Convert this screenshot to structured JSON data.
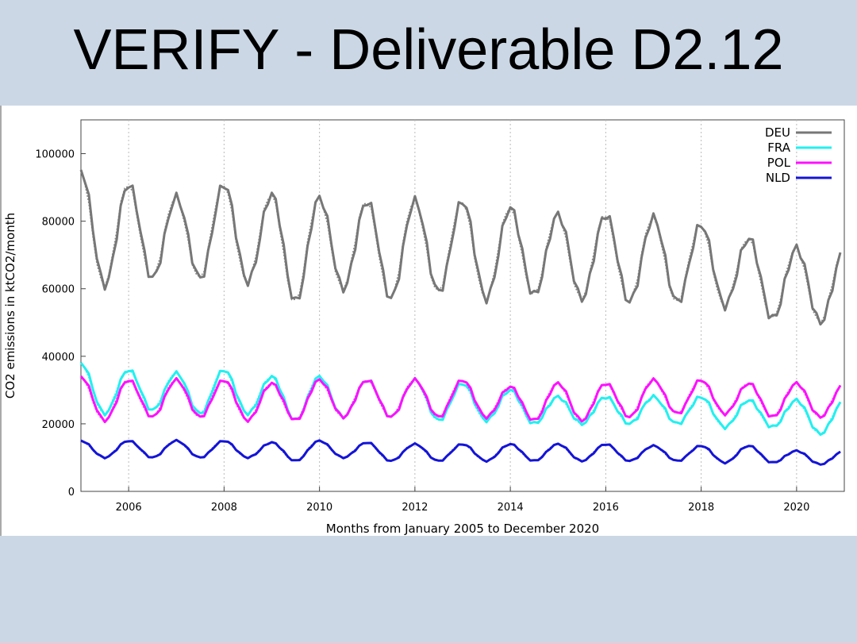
{
  "slide": {
    "title": "VERIFY - Deliverable D2.12"
  },
  "colors": {
    "background": "#cbd7e5",
    "DEU": "#777777",
    "FRA": "#22f0f0",
    "POL": "#ff10ff",
    "NLD": "#1414d8"
  },
  "chart_data": {
    "type": "line",
    "xlabel": "Months from January 2005 to December 2020",
    "ylabel": "CO2 emissions in ktCO2/month",
    "xlim": [
      2005,
      2021
    ],
    "ylim": [
      0,
      110000
    ],
    "xticks": [
      "2006",
      "2008",
      "2010",
      "2012",
      "2014",
      "2016",
      "2018",
      "2020"
    ],
    "yticks": [
      "0",
      "20000",
      "40000",
      "60000",
      "80000",
      "100000"
    ],
    "grid": "vertical dotted",
    "legend_position": "top-right",
    "series": [
      {
        "name": "DEU",
        "color": "#777777",
        "line_width": 3,
        "winter_peak": [
          95000,
          91000,
          87000,
          91000,
          88000,
          87000,
          86000,
          86000,
          86000,
          84000,
          82000,
          82000,
          81000,
          79000,
          75000,
          72000
        ],
        "summer_trough": [
          61000,
          63000,
          63000,
          62000,
          56000,
          60000,
          57000,
          59000,
          57000,
          58000,
          57000,
          56000,
          56000,
          55000,
          51000,
          50000
        ]
      },
      {
        "name": "FRA",
        "color": "#22f0f0",
        "line_width": 3,
        "winter_peak": [
          38000,
          36000,
          35000,
          36000,
          34000,
          34000,
          33000,
          33000,
          32000,
          30000,
          28000,
          28000,
          28000,
          28000,
          27000,
          27000
        ],
        "summer_trough": [
          23000,
          24000,
          23000,
          23000,
          21000,
          22000,
          22000,
          21000,
          21000,
          20000,
          20000,
          20000,
          20000,
          19000,
          19000,
          17000
        ]
      },
      {
        "name": "POL",
        "color": "#ff10ff",
        "line_width": 3,
        "winter_peak": [
          34000,
          33000,
          33000,
          33000,
          32000,
          33000,
          33000,
          33000,
          33000,
          31000,
          32000,
          32000,
          33000,
          33000,
          32000,
          32000
        ],
        "summer_trough": [
          21000,
          22000,
          22000,
          21000,
          21000,
          22000,
          22000,
          22000,
          22000,
          21000,
          21000,
          22000,
          23000,
          23000,
          22000,
          22000
        ]
      },
      {
        "name": "NLD",
        "color": "#1414d8",
        "line_width": 3,
        "winter_peak": [
          15000,
          15000,
          15000,
          15000,
          14500,
          15000,
          14500,
          14000,
          14000,
          14000,
          14000,
          14000,
          13500,
          13500,
          13500,
          12000
        ],
        "summer_trough": [
          10000,
          10000,
          10000,
          10000,
          9000,
          10000,
          9000,
          9000,
          9000,
          9000,
          9000,
          9000,
          9000,
          8500,
          8500,
          8000
        ]
      }
    ]
  }
}
